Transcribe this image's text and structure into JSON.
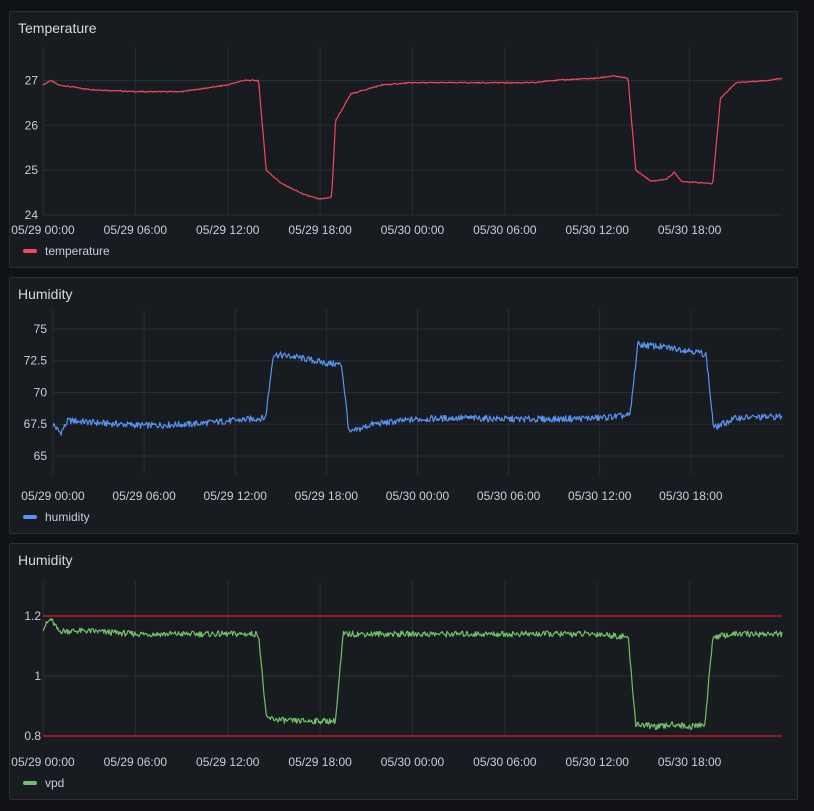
{
  "panels": [
    {
      "title": "Temperature",
      "legend": "temperature",
      "color": "#f2495c"
    },
    {
      "title": "Humidity",
      "legend": "humidity",
      "color": "#5794f2"
    },
    {
      "title": "Humidity",
      "legend": "vpd",
      "color": "#73bf69"
    }
  ],
  "chart_data": [
    {
      "type": "line",
      "title": "Temperature",
      "x_ticks": [
        "05/29 00:00",
        "05/29 06:00",
        "05/29 12:00",
        "05/29 18:00",
        "05/30 00:00",
        "05/30 06:00",
        "05/30 12:00",
        "05/30 18:00"
      ],
      "xlim": [
        "05/29 00:00",
        "05/31 00:00"
      ],
      "y_ticks": [
        "24",
        "25",
        "26",
        "27"
      ],
      "ylim": [
        24,
        27.3
      ],
      "grid": true,
      "legend_position": "bottom-left",
      "series": [
        {
          "name": "temperature",
          "color": "#f2495c",
          "points": [
            [
              "05/29 00:00",
              26.9
            ],
            [
              "05/29 00:30",
              27.0
            ],
            [
              "05/29 01:00",
              26.9
            ],
            [
              "05/29 03:00",
              26.8
            ],
            [
              "05/29 06:00",
              26.75
            ],
            [
              "05/29 09:00",
              26.75
            ],
            [
              "05/29 11:00",
              26.85
            ],
            [
              "05/29 12:00",
              26.9
            ],
            [
              "05/29 13:00",
              27.0
            ],
            [
              "05/29 14:00",
              27.0
            ],
            [
              "05/29 14:30",
              25.0
            ],
            [
              "05/29 15:30",
              24.7
            ],
            [
              "05/29 17:00",
              24.45
            ],
            [
              "05/29 18:00",
              24.35
            ],
            [
              "05/29 18:45",
              24.4
            ],
            [
              "05/29 19:00",
              26.1
            ],
            [
              "05/29 20:00",
              26.7
            ],
            [
              "05/29 22:00",
              26.9
            ],
            [
              "05/30 00:00",
              26.95
            ],
            [
              "05/30 03:00",
              26.95
            ],
            [
              "05/30 06:00",
              26.95
            ],
            [
              "05/30 08:00",
              26.95
            ],
            [
              "05/30 09:00",
              27.0
            ],
            [
              "05/30 12:00",
              27.05
            ],
            [
              "05/30 13:00",
              27.1
            ],
            [
              "05/30 14:00",
              27.05
            ],
            [
              "05/30 14:30",
              25.0
            ],
            [
              "05/30 15:30",
              24.75
            ],
            [
              "05/30 16:30",
              24.8
            ],
            [
              "05/30 17:00",
              24.95
            ],
            [
              "05/30 17:30",
              24.75
            ],
            [
              "05/30 19:30",
              24.7
            ],
            [
              "05/30 20:00",
              26.6
            ],
            [
              "05/30 21:00",
              26.95
            ],
            [
              "05/30 23:00",
              27.0
            ],
            [
              "05/31 00:00",
              27.05
            ]
          ]
        }
      ]
    },
    {
      "type": "line",
      "title": "Humidity",
      "x_ticks": [
        "05/29 00:00",
        "05/29 06:00",
        "05/29 12:00",
        "05/29 18:00",
        "05/30 00:00",
        "05/30 06:00",
        "05/30 12:00",
        "05/30 18:00"
      ],
      "xlim": [
        "05/29 00:00",
        "05/31 00:00"
      ],
      "y_ticks": [
        "65",
        "67.5",
        "70",
        "72.5",
        "75"
      ],
      "ylim": [
        63.5,
        75
      ],
      "grid": true,
      "legend_position": "bottom-left",
      "series": [
        {
          "name": "humidity",
          "color": "#5794f2",
          "points": [
            [
              "05/29 00:00",
              67.5
            ],
            [
              "05/29 00:30",
              66.8
            ],
            [
              "05/29 01:00",
              67.8
            ],
            [
              "05/29 03:00",
              67.6
            ],
            [
              "05/29 06:00",
              67.4
            ],
            [
              "05/29 09:00",
              67.5
            ],
            [
              "05/29 12:00",
              67.8
            ],
            [
              "05/29 14:00",
              68.0
            ],
            [
              "05/29 14:30",
              73.0
            ],
            [
              "05/29 16:00",
              72.8
            ],
            [
              "05/29 18:00",
              72.3
            ],
            [
              "05/29 19:00",
              72.2
            ],
            [
              "05/29 19:30",
              66.8
            ],
            [
              "05/29 21:00",
              67.5
            ],
            [
              "05/30 00:00",
              67.9
            ],
            [
              "05/30 03:00",
              68.0
            ],
            [
              "05/30 06:00",
              67.9
            ],
            [
              "05/30 09:00",
              67.9
            ],
            [
              "05/30 12:00",
              68.0
            ],
            [
              "05/30 14:00",
              68.2
            ],
            [
              "05/30 14:30",
              73.8
            ],
            [
              "05/30 16:00",
              73.6
            ],
            [
              "05/30 18:00",
              73.3
            ],
            [
              "05/30 19:00",
              73.0
            ],
            [
              "05/30 19:30",
              67.2
            ],
            [
              "05/30 21:00",
              68.0
            ],
            [
              "05/31 00:00",
              68.1
            ]
          ]
        }
      ]
    },
    {
      "type": "line",
      "title": "Humidity",
      "x_ticks": [
        "05/29 00:00",
        "05/29 06:00",
        "05/29 12:00",
        "05/29 18:00",
        "05/30 00:00",
        "05/30 06:00",
        "05/30 12:00",
        "05/30 18:00"
      ],
      "xlim": [
        "05/29 00:00",
        "05/31 00:00"
      ],
      "y_ticks": [
        "0.8",
        "1",
        "1.2"
      ],
      "ylim": [
        0.8,
        1.25
      ],
      "grid": true,
      "legend_position": "bottom-left",
      "threshold_lines": [
        1.2,
        0.8
      ],
      "threshold_color": "#c4162a",
      "series": [
        {
          "name": "vpd",
          "color": "#73bf69",
          "points": [
            [
              "05/29 00:00",
              1.16
            ],
            [
              "05/29 00:30",
              1.19
            ],
            [
              "05/29 01:00",
              1.15
            ],
            [
              "05/29 03:00",
              1.15
            ],
            [
              "05/29 06:00",
              1.14
            ],
            [
              "05/29 09:00",
              1.14
            ],
            [
              "05/29 12:00",
              1.14
            ],
            [
              "05/29 14:00",
              1.14
            ],
            [
              "05/29 14:30",
              0.86
            ],
            [
              "05/29 16:00",
              0.85
            ],
            [
              "05/29 18:00",
              0.85
            ],
            [
              "05/29 19:00",
              0.85
            ],
            [
              "05/29 19:30",
              1.14
            ],
            [
              "05/29 21:00",
              1.14
            ],
            [
              "05/30 00:00",
              1.14
            ],
            [
              "05/30 03:00",
              1.14
            ],
            [
              "05/30 06:00",
              1.14
            ],
            [
              "05/30 09:00",
              1.14
            ],
            [
              "05/30 12:00",
              1.14
            ],
            [
              "05/30 14:00",
              1.13
            ],
            [
              "05/30 14:30",
              0.84
            ],
            [
              "05/30 16:00",
              0.83
            ],
            [
              "05/30 17:00",
              0.84
            ],
            [
              "05/30 18:00",
              0.83
            ],
            [
              "05/30 19:00",
              0.84
            ],
            [
              "05/30 19:30",
              1.13
            ],
            [
              "05/30 21:00",
              1.14
            ],
            [
              "05/31 00:00",
              1.14
            ]
          ]
        }
      ]
    }
  ]
}
